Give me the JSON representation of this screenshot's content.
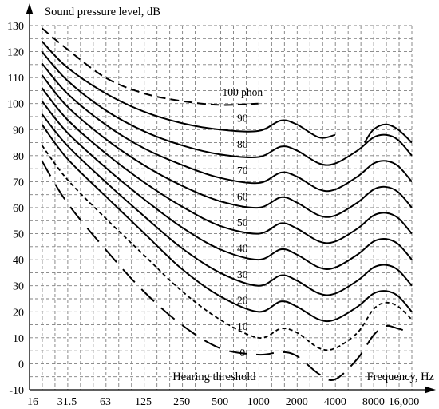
{
  "chart_data": {
    "type": "line",
    "title": "",
    "ylabel": "Sound pressure level, dB",
    "xlabel": "Frequency, Hz",
    "x_scale": "log",
    "xlim": [
      16,
      16000
    ],
    "ylim": [
      -10,
      130
    ],
    "grid": true,
    "x_ticks": [
      {
        "value": 16,
        "label": "16"
      },
      {
        "value": 31.5,
        "label": "31.5"
      },
      {
        "value": 63,
        "label": "63"
      },
      {
        "value": 125,
        "label": "125"
      },
      {
        "value": 250,
        "label": "250"
      },
      {
        "value": 500,
        "label": "500"
      },
      {
        "value": 1000,
        "label": "1000"
      },
      {
        "value": 2000,
        "label": "2000"
      },
      {
        "value": 4000,
        "label": "4000"
      },
      {
        "value": 8000,
        "label": "8000"
      },
      {
        "value": 16000,
        "label": "16,000"
      }
    ],
    "y_ticks": [
      -10,
      0,
      10,
      20,
      30,
      40,
      50,
      60,
      70,
      80,
      90,
      100,
      110,
      120,
      130
    ],
    "series": [
      {
        "name": "100 phon",
        "style": "dashed",
        "x": [
          20,
          31.5,
          63,
          125,
          250,
          500,
          1000
        ],
        "y": [
          129,
          121,
          110,
          104,
          101,
          99.5,
          100
        ]
      },
      {
        "name": "90",
        "style": "solid",
        "x": [
          20,
          31.5,
          63,
          125,
          250,
          500,
          1000,
          1500,
          2000,
          3000,
          4000
        ],
        "y": [
          124,
          114,
          104,
          97,
          92.5,
          90,
          89.5,
          93.5,
          92,
          87,
          88
        ]
      },
      {
        "name": "",
        "style": "solid",
        "x": [
          6800,
          8000,
          10000,
          12500,
          16000
        ],
        "y": [
          85,
          90,
          92,
          90,
          85
        ]
      },
      {
        "name": "80",
        "style": "solid",
        "x": [
          20,
          31.5,
          63,
          125,
          250,
          500,
          1000,
          1500,
          2000,
          3000,
          4000,
          6000,
          8000,
          10000,
          12500,
          16000
        ],
        "y": [
          120,
          109,
          97.5,
          89.5,
          84,
          80.5,
          79.5,
          83.5,
          82,
          77,
          77,
          82,
          87,
          88,
          86,
          80
        ]
      },
      {
        "name": "70",
        "style": "solid",
        "x": [
          20,
          31.5,
          63,
          125,
          250,
          500,
          1000,
          1500,
          2000,
          3000,
          4000,
          6000,
          8000,
          10000,
          12500,
          16000
        ],
        "y": [
          115.5,
          104,
          92,
          83,
          76.5,
          71.5,
          69.5,
          73.5,
          72,
          67,
          67,
          72,
          77,
          78,
          76,
          70
        ]
      },
      {
        "name": "60",
        "style": "solid",
        "x": [
          20,
          31.5,
          63,
          125,
          250,
          500,
          1000,
          1500,
          2000,
          3000,
          4000,
          6000,
          8000,
          10000,
          12500,
          16000
        ],
        "y": [
          111,
          99,
          86.5,
          76.5,
          68.5,
          62.5,
          60,
          64,
          62,
          57,
          57,
          62,
          67,
          68,
          66,
          60
        ]
      },
      {
        "name": "50",
        "style": "solid",
        "x": [
          20,
          31.5,
          63,
          125,
          250,
          500,
          1000,
          1500,
          2000,
          3000,
          4000,
          6000,
          8000,
          10000,
          12500,
          16000
        ],
        "y": [
          106,
          94,
          81,
          70,
          60.5,
          53,
          50,
          54,
          52,
          47,
          47,
          52,
          57,
          58,
          56,
          50
        ]
      },
      {
        "name": "40",
        "style": "solid",
        "x": [
          20,
          31.5,
          63,
          125,
          250,
          500,
          1000,
          1500,
          2000,
          3000,
          4000,
          6000,
          8000,
          10000,
          12500,
          16000
        ],
        "y": [
          101,
          89,
          75.5,
          63.5,
          52.5,
          44,
          40,
          44,
          42,
          37,
          37,
          42,
          47,
          48,
          46,
          40
        ]
      },
      {
        "name": "30",
        "style": "solid",
        "x": [
          20,
          31.5,
          63,
          125,
          250,
          500,
          1000,
          1500,
          2000,
          3000,
          4000,
          6000,
          8000,
          10000,
          12500,
          16000
        ],
        "y": [
          96,
          84,
          70,
          57,
          44.5,
          35,
          30,
          34,
          32,
          27,
          27,
          32,
          37,
          38,
          36,
          30
        ]
      },
      {
        "name": "20",
        "style": "solid",
        "x": [
          20,
          31.5,
          63,
          125,
          250,
          500,
          1000,
          1500,
          2000,
          3000,
          4000,
          6000,
          8000,
          10000,
          12500,
          16000
        ],
        "y": [
          92,
          79,
          64.5,
          50.5,
          36.5,
          26,
          20,
          24,
          22,
          17,
          17,
          22,
          27,
          28,
          26,
          20
        ]
      },
      {
        "name": "10",
        "style": "dotted",
        "x": [
          20,
          31.5,
          63,
          125,
          250,
          500,
          1000,
          1500,
          2000,
          3000,
          4000,
          6000,
          8000,
          10000,
          12500,
          16000
        ],
        "y": [
          84,
          71,
          56,
          42,
          28,
          17,
          10,
          13.5,
          12,
          6,
          6,
          12,
          21,
          23.5,
          22,
          17
        ]
      },
      {
        "name": "0",
        "style": "long-dashed",
        "x": [
          20,
          31.5,
          63,
          125,
          250,
          500,
          1000,
          1500,
          2000,
          3000,
          4000,
          6000,
          8000,
          10000,
          12500,
          16000
        ],
        "y": [
          78,
          62,
          44,
          28,
          15,
          6,
          3.5,
          4.5,
          3,
          -4,
          -6,
          2,
          11,
          14.5,
          13.5,
          12
        ]
      }
    ],
    "annotations": [
      {
        "text": "100 phon"
      },
      {
        "text": "Hearing threshold"
      }
    ]
  }
}
